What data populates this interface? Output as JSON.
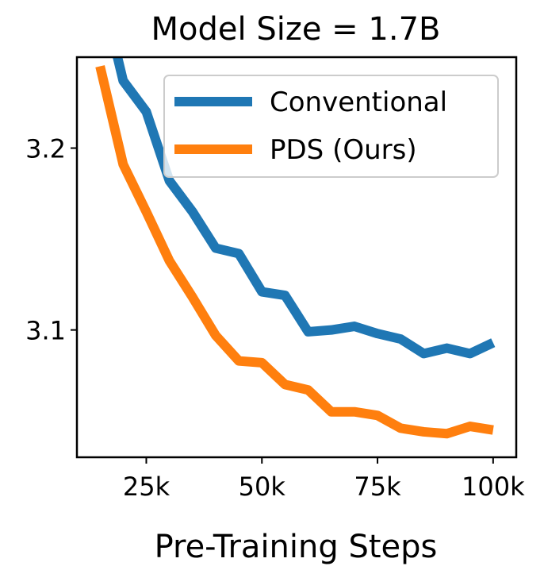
{
  "chart_data": {
    "type": "line",
    "title": "Model Size = 1.7B",
    "xlabel": "Pre-Training Steps",
    "ylabel": "",
    "xlim": [
      10000,
      105000
    ],
    "ylim": [
      3.03,
      3.25
    ],
    "xticks": [
      25000,
      50000,
      75000,
      100000
    ],
    "xtick_labels": [
      "25k",
      "50k",
      "75k",
      "100k"
    ],
    "yticks": [
      3.1,
      3.2
    ],
    "ytick_labels": [
      "3.1",
      "3.2"
    ],
    "grid": false,
    "legend_position": "top-right",
    "x": [
      15000,
      20000,
      25000,
      30000,
      35000,
      40000,
      45000,
      50000,
      55000,
      60000,
      65000,
      70000,
      75000,
      80000,
      85000,
      90000,
      95000,
      100000
    ],
    "series": [
      {
        "name": "Conventional",
        "color": "#1f77b4",
        "values": [
          3.29,
          3.237,
          3.22,
          3.182,
          3.165,
          3.145,
          3.142,
          3.121,
          3.119,
          3.099,
          3.1,
          3.102,
          3.098,
          3.095,
          3.087,
          3.09,
          3.087,
          3.093
        ]
      },
      {
        "name": "PDS (Ours)",
        "color": "#ff7f0e",
        "values": [
          3.245,
          3.191,
          3.165,
          3.138,
          3.118,
          3.097,
          3.083,
          3.082,
          3.07,
          3.067,
          3.055,
          3.055,
          3.053,
          3.046,
          3.044,
          3.043,
          3.047,
          3.045
        ]
      }
    ]
  }
}
